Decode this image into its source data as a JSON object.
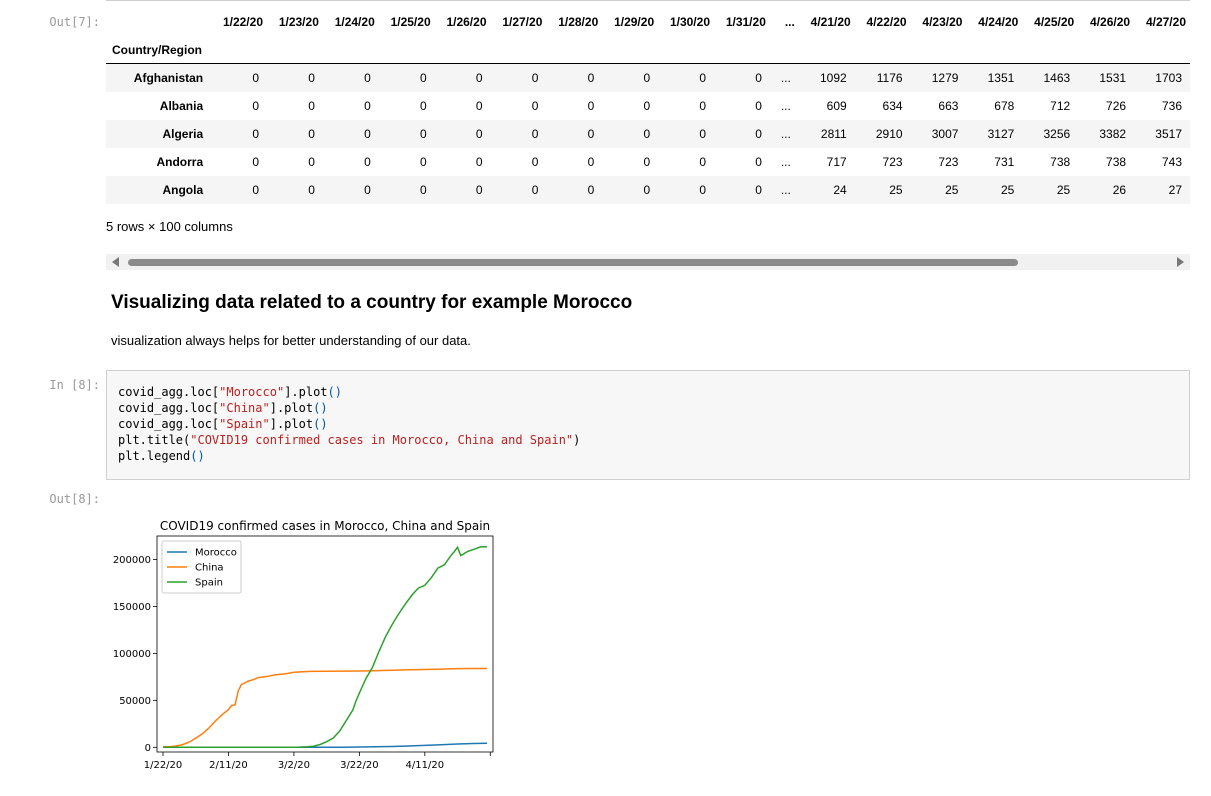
{
  "out7_prompt": "Out[7]:",
  "table": {
    "index_name": "Country/Region",
    "columns": [
      "1/22/20",
      "1/23/20",
      "1/24/20",
      "1/25/20",
      "1/26/20",
      "1/27/20",
      "1/28/20",
      "1/29/20",
      "1/30/20",
      "1/31/20",
      "...",
      "4/21/20",
      "4/22/20",
      "4/23/20",
      "4/24/20",
      "4/25/20",
      "4/26/20",
      "4/27/20"
    ],
    "rows": [
      {
        "label": "Afghanistan",
        "cells": [
          "0",
          "0",
          "0",
          "0",
          "0",
          "0",
          "0",
          "0",
          "0",
          "0",
          "...",
          "1092",
          "1176",
          "1279",
          "1351",
          "1463",
          "1531",
          "1703"
        ]
      },
      {
        "label": "Albania",
        "cells": [
          "0",
          "0",
          "0",
          "0",
          "0",
          "0",
          "0",
          "0",
          "0",
          "0",
          "...",
          "609",
          "634",
          "663",
          "678",
          "712",
          "726",
          "736"
        ]
      },
      {
        "label": "Algeria",
        "cells": [
          "0",
          "0",
          "0",
          "0",
          "0",
          "0",
          "0",
          "0",
          "0",
          "0",
          "...",
          "2811",
          "2910",
          "3007",
          "3127",
          "3256",
          "3382",
          "3517"
        ]
      },
      {
        "label": "Andorra",
        "cells": [
          "0",
          "0",
          "0",
          "0",
          "0",
          "0",
          "0",
          "0",
          "0",
          "0",
          "...",
          "717",
          "723",
          "723",
          "731",
          "738",
          "738",
          "743"
        ]
      },
      {
        "label": "Angola",
        "cells": [
          "0",
          "0",
          "0",
          "0",
          "0",
          "0",
          "0",
          "0",
          "0",
          "0",
          "...",
          "24",
          "25",
          "25",
          "25",
          "25",
          "26",
          "27"
        ]
      }
    ],
    "shape_text": "5 rows × 100 columns"
  },
  "markdown": {
    "heading": "Visualizing data related to a country for example Morocco",
    "text": "visualization always helps for better understanding of our data."
  },
  "in8_prompt": "In [8]:",
  "code_lines": [
    [
      {
        "t": "covid_agg.loc["
      },
      {
        "t": "\"Morocco\"",
        "c": "s"
      },
      {
        "t": "].plot"
      },
      {
        "t": "()",
        "c": "p"
      }
    ],
    [
      {
        "t": "covid_agg.loc["
      },
      {
        "t": "\"China\"",
        "c": "s"
      },
      {
        "t": "].plot"
      },
      {
        "t": "()",
        "c": "p"
      }
    ],
    [
      {
        "t": "covid_agg.loc["
      },
      {
        "t": "\"Spain\"",
        "c": "s"
      },
      {
        "t": "].plot"
      },
      {
        "t": "()",
        "c": "p"
      }
    ],
    [
      {
        "t": "plt.title("
      },
      {
        "t": "\"COVID19 confirmed cases in Morocco, China and Spain\"",
        "c": "s"
      },
      {
        "t": ")"
      }
    ],
    [
      {
        "t": "plt.legend"
      },
      {
        "t": "()",
        "c": "p"
      }
    ]
  ],
  "out8_prompt": "Out[8]:",
  "chart_data": {
    "type": "line",
    "title": "COVID19 confirmed cases in Morocco, China and Spain",
    "x_tick_labels": [
      "1/22/20",
      "2/11/20",
      "3/2/20",
      "3/22/20",
      "4/11/20"
    ],
    "x_tick_days": [
      0,
      20,
      40,
      60,
      80
    ],
    "x_range_days": [
      0,
      99
    ],
    "ylim": [
      -5000,
      225000
    ],
    "yticks": [
      0,
      50000,
      100000,
      150000,
      200000
    ],
    "legend": "top-left",
    "series": [
      {
        "name": "Morocco",
        "color": "#1f77b4",
        "points": [
          [
            0,
            0
          ],
          [
            40,
            0
          ],
          [
            45,
            1
          ],
          [
            50,
            30
          ],
          [
            55,
            100
          ],
          [
            60,
            300
          ],
          [
            65,
            600
          ],
          [
            70,
            900
          ],
          [
            75,
            1400
          ],
          [
            80,
            2000
          ],
          [
            85,
            2800
          ],
          [
            90,
            3500
          ],
          [
            95,
            4000
          ],
          [
            99,
            4300
          ]
        ]
      },
      {
        "name": "China",
        "color": "#ff7f0e",
        "points": [
          [
            0,
            550
          ],
          [
            2,
            650
          ],
          [
            4,
            1400
          ],
          [
            6,
            2900
          ],
          [
            8,
            5500
          ],
          [
            10,
            9700
          ],
          [
            12,
            14400
          ],
          [
            14,
            20400
          ],
          [
            16,
            28000
          ],
          [
            18,
            34600
          ],
          [
            20,
            40200
          ],
          [
            21,
            44700
          ],
          [
            22,
            45200
          ],
          [
            23,
            60300
          ],
          [
            24,
            66900
          ],
          [
            25,
            68500
          ],
          [
            26,
            70500
          ],
          [
            28,
            72400
          ],
          [
            29,
            74200
          ],
          [
            30,
            74700
          ],
          [
            32,
            75600
          ],
          [
            34,
            77000
          ],
          [
            36,
            77800
          ],
          [
            38,
            78600
          ],
          [
            40,
            80000
          ],
          [
            45,
            80800
          ],
          [
            50,
            81000
          ],
          [
            55,
            81100
          ],
          [
            60,
            81300
          ],
          [
            65,
            81600
          ],
          [
            70,
            82100
          ],
          [
            75,
            82500
          ],
          [
            80,
            82900
          ],
          [
            85,
            83300
          ],
          [
            90,
            83800
          ],
          [
            95,
            83900
          ],
          [
            99,
            83900
          ]
        ]
      },
      {
        "name": "Spain",
        "color": "#2ca02c",
        "points": [
          [
            0,
            0
          ],
          [
            38,
            0
          ],
          [
            41,
            100
          ],
          [
            44,
            500
          ],
          [
            46,
            1200
          ],
          [
            48,
            3000
          ],
          [
            50,
            6000
          ],
          [
            52,
            9900
          ],
          [
            54,
            17400
          ],
          [
            56,
            28500
          ],
          [
            58,
            39700
          ],
          [
            59,
            49500
          ],
          [
            60,
            57800
          ],
          [
            62,
            73200
          ],
          [
            64,
            85200
          ],
          [
            66,
            102100
          ],
          [
            68,
            117700
          ],
          [
            70,
            130700
          ],
          [
            72,
            141900
          ],
          [
            74,
            152400
          ],
          [
            76,
            161800
          ],
          [
            78,
            169500
          ],
          [
            80,
            172500
          ],
          [
            82,
            180700
          ],
          [
            84,
            190800
          ],
          [
            86,
            194400
          ],
          [
            88,
            204200
          ],
          [
            89,
            208400
          ],
          [
            90,
            213000
          ],
          [
            91,
            204100
          ],
          [
            93,
            208400
          ],
          [
            95,
            210800
          ],
          [
            97,
            213400
          ],
          [
            99,
            213500
          ]
        ]
      }
    ]
  }
}
